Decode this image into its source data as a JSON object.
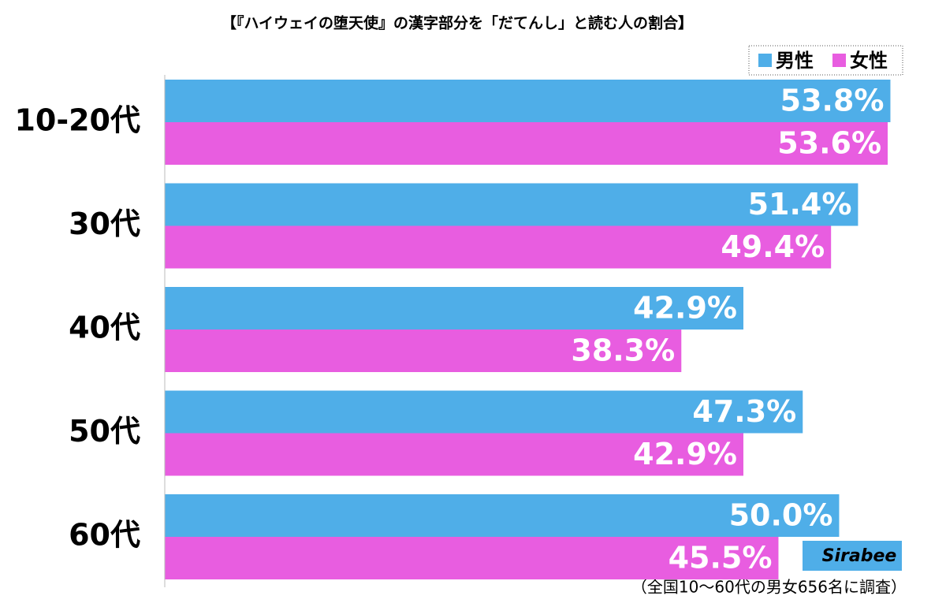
{
  "chart_data": {
    "type": "hbar",
    "title": "【『ハイウェイの堕天使』の漢字部分を「だてんし」と読む人の割合】",
    "categories": [
      "10-20代",
      "30代",
      "40代",
      "50代",
      "60代"
    ],
    "series": [
      {
        "name": "男性",
        "color": "#4faee8",
        "values": [
          53.8,
          51.4,
          42.9,
          47.3,
          50.0
        ],
        "value_labels": [
          "53.8%",
          "51.4%",
          "42.9%",
          "47.3%",
          "50.0%"
        ]
      },
      {
        "name": "女性",
        "color": "#e85de0",
        "values": [
          53.6,
          49.4,
          38.3,
          42.9,
          45.5
        ],
        "value_labels": [
          "53.6%",
          "49.4%",
          "38.3%",
          "42.9%",
          "45.5%"
        ]
      }
    ],
    "xlim": [
      0,
      55
    ],
    "legend": "top-right",
    "note": "（全国10〜60代の男女656名に調査）",
    "logo": "Sirabee"
  }
}
